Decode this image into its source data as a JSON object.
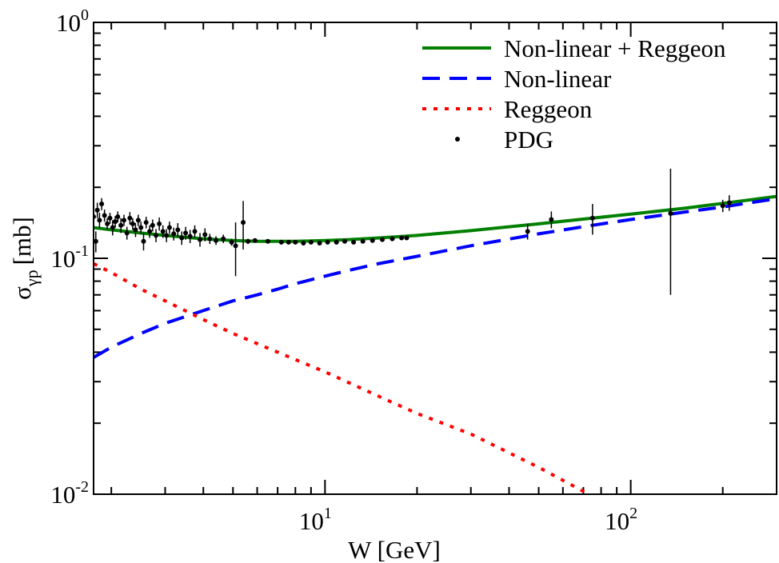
{
  "chart_data": {
    "type": "line",
    "xscale": "log",
    "yscale": "log",
    "xlim": [
      1.75,
      300
    ],
    "ylim": [
      0.01,
      1
    ],
    "xlabel": "W [GeV]",
    "ylabel": {
      "main": "σ",
      "sub": "γp",
      "unit": "[mb]"
    },
    "x_ticks": [
      {
        "base": "10",
        "exp": "1",
        "value": 10
      },
      {
        "base": "10",
        "exp": "2",
        "value": 100
      }
    ],
    "y_ticks": [
      {
        "base": "10",
        "exp": "0",
        "value": 1
      },
      {
        "base": "10",
        "exp": "-1",
        "value": 0.1
      },
      {
        "base": "10",
        "exp": "-2",
        "value": 0.01
      }
    ],
    "legend_position": "top-right",
    "series": [
      {
        "name": "Non-linear + Reggeon",
        "style": "solid",
        "color": "#008000",
        "x": [
          1.75,
          2,
          2.5,
          3,
          4,
          5,
          6,
          7,
          8,
          10,
          12,
          15,
          20,
          30,
          50,
          75,
          100,
          150,
          200,
          300
        ],
        "y": [
          0.135,
          0.132,
          0.128,
          0.125,
          0.121,
          0.119,
          0.118,
          0.118,
          0.118,
          0.119,
          0.12,
          0.122,
          0.125,
          0.131,
          0.14,
          0.148,
          0.154,
          0.163,
          0.171,
          0.183
        ]
      },
      {
        "name": "Non-linear",
        "style": "dashed",
        "color": "#0000ff",
        "x": [
          1.75,
          2,
          2.5,
          3,
          4,
          5,
          6,
          7,
          8,
          10,
          12,
          15,
          20,
          30,
          50,
          75,
          100,
          150,
          200,
          300
        ],
        "y": [
          0.038,
          0.042,
          0.048,
          0.053,
          0.06,
          0.066,
          0.07,
          0.074,
          0.078,
          0.084,
          0.089,
          0.095,
          0.102,
          0.113,
          0.127,
          0.138,
          0.146,
          0.157,
          0.165,
          0.179
        ]
      },
      {
        "name": "Reggeon",
        "style": "dotted",
        "color": "#ff0000",
        "x": [
          1.75,
          2,
          2.5,
          3,
          4,
          5,
          7,
          10,
          15,
          20,
          30,
          50,
          75
        ],
        "y": [
          0.095,
          0.087,
          0.074,
          0.066,
          0.055,
          0.048,
          0.04,
          0.033,
          0.026,
          0.022,
          0.018,
          0.013,
          0.0098
        ]
      },
      {
        "name": "PDG",
        "style": "points",
        "color": "#000000",
        "points": [
          {
            "x": 1.75,
            "y": 0.15,
            "err": 0.015
          },
          {
            "x": 1.78,
            "y": 0.118,
            "err": 0.012
          },
          {
            "x": 1.8,
            "y": 0.16,
            "err": 0.012
          },
          {
            "x": 1.83,
            "y": 0.145,
            "err": 0.011
          },
          {
            "x": 1.86,
            "y": 0.17,
            "err": 0.01
          },
          {
            "x": 1.9,
            "y": 0.152,
            "err": 0.009
          },
          {
            "x": 1.94,
            "y": 0.14,
            "err": 0.008
          },
          {
            "x": 1.98,
            "y": 0.148,
            "err": 0.008
          },
          {
            "x": 2.02,
            "y": 0.135,
            "err": 0.01
          },
          {
            "x": 2.06,
            "y": 0.143,
            "err": 0.008
          },
          {
            "x": 2.1,
            "y": 0.15,
            "err": 0.008
          },
          {
            "x": 2.15,
            "y": 0.138,
            "err": 0.01
          },
          {
            "x": 2.2,
            "y": 0.145,
            "err": 0.008
          },
          {
            "x": 2.25,
            "y": 0.128,
            "err": 0.008
          },
          {
            "x": 2.3,
            "y": 0.148,
            "err": 0.009
          },
          {
            "x": 2.35,
            "y": 0.14,
            "err": 0.008
          },
          {
            "x": 2.4,
            "y": 0.132,
            "err": 0.009
          },
          {
            "x": 2.45,
            "y": 0.145,
            "err": 0.008
          },
          {
            "x": 2.5,
            "y": 0.135,
            "err": 0.008
          },
          {
            "x": 2.55,
            "y": 0.118,
            "err": 0.01
          },
          {
            "x": 2.6,
            "y": 0.142,
            "err": 0.008
          },
          {
            "x": 2.67,
            "y": 0.13,
            "err": 0.008
          },
          {
            "x": 2.73,
            "y": 0.138,
            "err": 0.008
          },
          {
            "x": 2.8,
            "y": 0.125,
            "err": 0.008
          },
          {
            "x": 2.87,
            "y": 0.14,
            "err": 0.009
          },
          {
            "x": 2.95,
            "y": 0.13,
            "err": 0.008
          },
          {
            "x": 3.03,
            "y": 0.125,
            "err": 0.008
          },
          {
            "x": 3.1,
            "y": 0.135,
            "err": 0.008
          },
          {
            "x": 3.2,
            "y": 0.127,
            "err": 0.008
          },
          {
            "x": 3.3,
            "y": 0.132,
            "err": 0.009
          },
          {
            "x": 3.4,
            "y": 0.122,
            "err": 0.008
          },
          {
            "x": 3.5,
            "y": 0.128,
            "err": 0.008
          },
          {
            "x": 3.62,
            "y": 0.124,
            "err": 0.008
          },
          {
            "x": 3.75,
            "y": 0.13,
            "err": 0.008
          },
          {
            "x": 3.9,
            "y": 0.12,
            "err": 0.008
          },
          {
            "x": 4.05,
            "y": 0.126,
            "err": 0.008
          },
          {
            "x": 4.2,
            "y": 0.121,
            "err": 0.006
          },
          {
            "x": 4.4,
            "y": 0.119,
            "err": 0.005
          },
          {
            "x": 4.65,
            "y": 0.121,
            "err": 0.005
          },
          {
            "x": 4.95,
            "y": 0.117,
            "err": 0.004
          },
          {
            "x": 5.1,
            "y": 0.113,
            "err": 0.029
          },
          {
            "x": 5.4,
            "y": 0.142,
            "err": 0.033
          },
          {
            "x": 5.6,
            "y": 0.118,
            "err": 0.003
          },
          {
            "x": 5.9,
            "y": 0.119,
            "err": 0.002
          },
          {
            "x": 6.5,
            "y": 0.118,
            "err": 0.002
          },
          {
            "x": 7.2,
            "y": 0.117,
            "err": 0.002
          },
          {
            "x": 7.6,
            "y": 0.117,
            "err": 0.002
          },
          {
            "x": 8.0,
            "y": 0.117,
            "err": 0.002
          },
          {
            "x": 8.5,
            "y": 0.116,
            "err": 0.002
          },
          {
            "x": 9.0,
            "y": 0.117,
            "err": 0.002
          },
          {
            "x": 9.6,
            "y": 0.116,
            "err": 0.002
          },
          {
            "x": 10.2,
            "y": 0.117,
            "err": 0.002
          },
          {
            "x": 10.9,
            "y": 0.117,
            "err": 0.002
          },
          {
            "x": 11.6,
            "y": 0.118,
            "err": 0.002
          },
          {
            "x": 12.4,
            "y": 0.117,
            "err": 0.002
          },
          {
            "x": 13.3,
            "y": 0.118,
            "err": 0.002
          },
          {
            "x": 14.3,
            "y": 0.119,
            "err": 0.002
          },
          {
            "x": 15.4,
            "y": 0.12,
            "err": 0.002
          },
          {
            "x": 16.6,
            "y": 0.121,
            "err": 0.002
          },
          {
            "x": 17.8,
            "y": 0.122,
            "err": 0.002
          },
          {
            "x": 18.5,
            "y": 0.122,
            "err": 0.002
          },
          {
            "x": 46.0,
            "y": 0.13,
            "err": 0.01
          },
          {
            "x": 55.0,
            "y": 0.146,
            "err": 0.012
          },
          {
            "x": 75.0,
            "y": 0.148,
            "err": 0.022
          },
          {
            "x": 135.0,
            "y": 0.155,
            "err": 0.085
          },
          {
            "x": 200.0,
            "y": 0.167,
            "err": 0.01
          },
          {
            "x": 210.0,
            "y": 0.172,
            "err": 0.013
          }
        ]
      }
    ]
  }
}
